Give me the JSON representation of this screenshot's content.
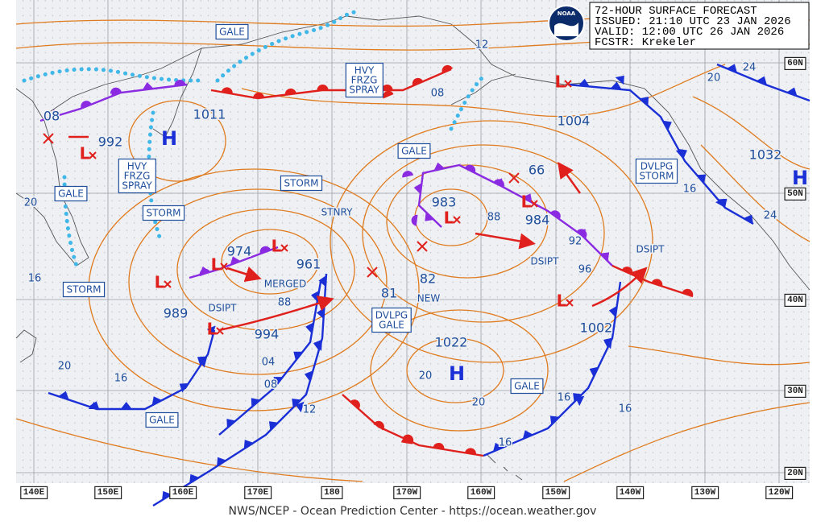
{
  "header": {
    "lines": [
      "72-HOUR SURFACE FORECAST",
      "ISSUED: 21:10 UTC 23 JAN 2026",
      "VALID:  12:00 UTC 26 JAN 2026",
      "FCSTR:  Krekeler"
    ]
  },
  "logo": "NOAA",
  "longitude_labels": [
    "140E",
    "150E",
    "160E",
    "170E",
    "180",
    "170W",
    "160W",
    "150W",
    "140W",
    "130W",
    "120W"
  ],
  "latitude_labels": [
    "60N",
    "50N",
    "40N",
    "30N",
    "20N"
  ],
  "highs": [
    "H",
    "H",
    "H"
  ],
  "lows": [
    "L",
    "L",
    "L",
    "L",
    "L",
    "L",
    "L",
    "L",
    "L"
  ],
  "pressures": [
    "1011",
    "992",
    "974",
    "961",
    "989",
    "994",
    "1022",
    "983",
    "984",
    "1004",
    "1002",
    "1032",
    "08",
    "66",
    "81",
    "82"
  ],
  "isobar_labels": [
    "12",
    "08",
    "20",
    "24",
    "16",
    "24",
    "88",
    "92",
    "96",
    "20",
    "16",
    "20",
    "16",
    "88",
    "04",
    "08",
    "12",
    "20",
    "20",
    "16",
    "16",
    "16"
  ],
  "warnings": [
    [
      "GALE"
    ],
    [
      "HVY",
      "FRZG",
      "SPRAY"
    ],
    [
      "GALE"
    ],
    [
      "STORM"
    ],
    [
      "STORM"
    ],
    [
      "HVY",
      "FRZG",
      "SPRAY"
    ],
    [
      "GALE"
    ],
    [
      "STORM"
    ],
    [
      "DVLPG",
      "GALE"
    ],
    [
      "GALE"
    ],
    [
      "GALE"
    ],
    [
      "DVLPG",
      "STORM"
    ]
  ],
  "status_labels": [
    "STNRY",
    "MERGED",
    "NEW",
    "DSIPT",
    "DSIPT",
    "DSIPT"
  ],
  "footer": "NWS/NCEP - Ocean Prediction Center - https://ocean.weather.gov"
}
